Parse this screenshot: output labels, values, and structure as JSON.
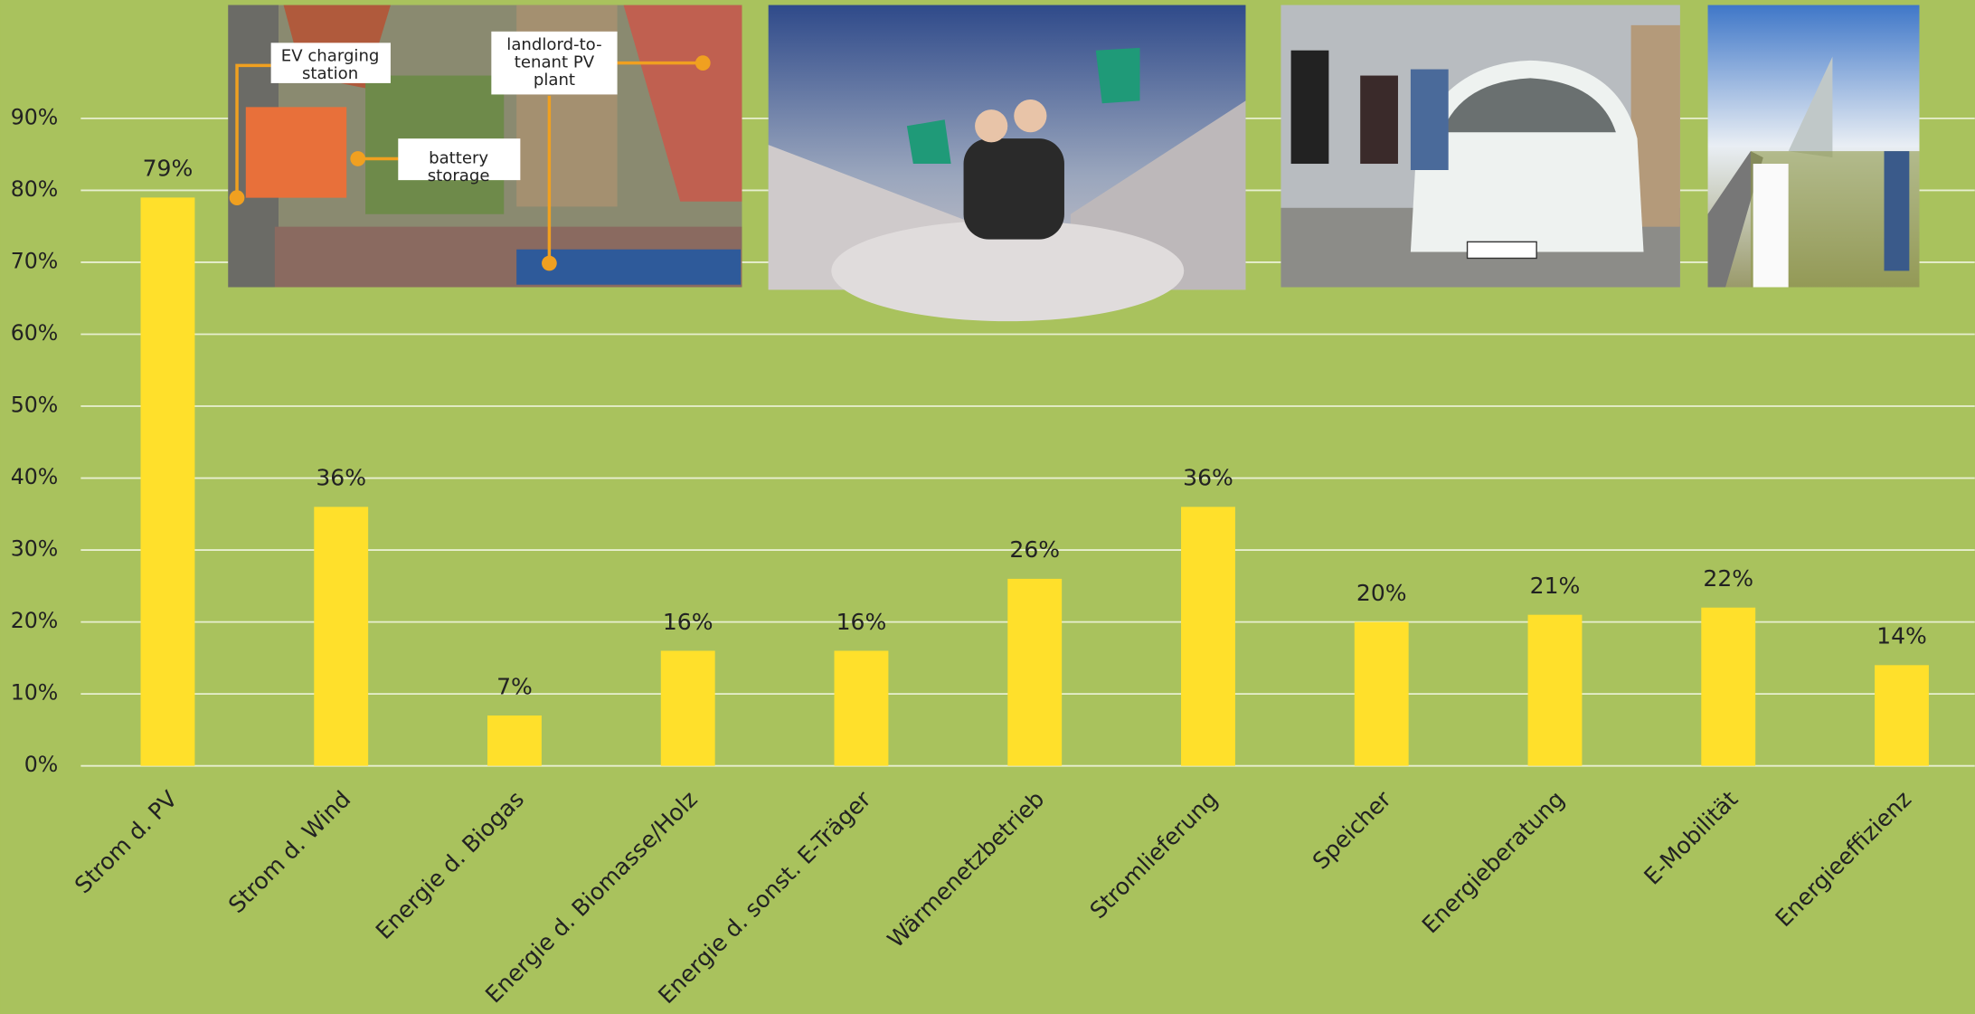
{
  "chart_data": {
    "type": "bar",
    "categories": [
      "Strom d. PV",
      "Strom d. Wind",
      "Energie d. Biogas",
      "Energie d. Biomasse/Holz",
      "Energie d. sonst. E-Träger",
      "Wärmenetzbetrieb",
      "Stromlieferung",
      "Speicher",
      "Energieberatung",
      "E-Mobilität",
      "Energieeffizienz"
    ],
    "values": [
      79,
      36,
      7,
      16,
      16,
      26,
      36,
      20,
      21,
      22,
      14
    ],
    "value_labels": [
      "79%",
      "36%",
      "7%",
      "16%",
      "16%",
      "26%",
      "36%",
      "20%",
      "21%",
      "22%",
      "14%"
    ],
    "color": "#ffe02b",
    "ylim": [
      0,
      90
    ],
    "yticks": [
      {
        "value": 0,
        "label": "0%"
      },
      {
        "value": 10,
        "label": "10%"
      },
      {
        "value": 20,
        "label": "20%"
      },
      {
        "value": 30,
        "label": "30%"
      },
      {
        "value": 40,
        "label": "40%"
      },
      {
        "value": 50,
        "label": "50%"
      },
      {
        "value": 60,
        "label": "60%"
      },
      {
        "value": 70,
        "label": "70%"
      },
      {
        "value": 80,
        "label": "80%"
      },
      {
        "value": 90,
        "label": "90%"
      }
    ],
    "grid": true,
    "annotations": [
      [
        "EV charging",
        "station"
      ],
      [
        "battery",
        "storage"
      ],
      [
        "landlord-to-",
        "tenant PV",
        "plant"
      ]
    ]
  }
}
